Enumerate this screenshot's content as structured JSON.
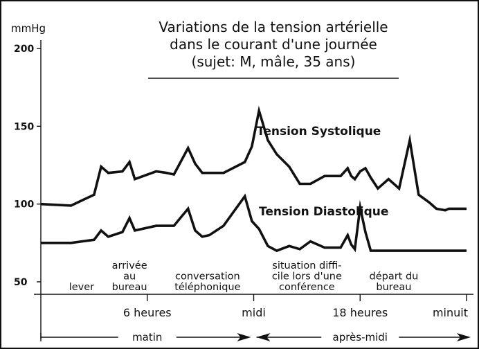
{
  "chart_data": {
    "type": "line",
    "title": "Variations de la tension artérielle\ndans le courant d'une journée\n(sujet: M, mâle, 35 ans)",
    "ylabel": "mmHg",
    "ylim": [
      50,
      200
    ],
    "yticks": [
      50,
      100,
      150,
      200
    ],
    "xlim": [
      0,
      24
    ],
    "xticks": [
      {
        "x": 6,
        "label": "6 heures"
      },
      {
        "x": 12,
        "label": "midi"
      },
      {
        "x": 18,
        "label": "18 heures"
      },
      {
        "x": 24,
        "label": "minuit"
      }
    ],
    "series": [
      {
        "name": "Tension Systolique",
        "x": [
          0,
          1.7,
          3.0,
          3.4,
          3.8,
          4.6,
          5.0,
          5.3,
          6.5,
          7.1,
          7.5,
          8.3,
          8.7,
          9.1,
          9.5,
          10.3,
          11.5,
          11.9,
          12.3,
          12.8,
          13.3,
          14.0,
          14.6,
          15.2,
          16.0,
          16.9,
          17.3,
          17.5,
          17.7,
          18.0,
          18.3,
          18.6,
          19.0,
          19.6,
          20.2,
          20.8,
          21.3,
          21.9,
          22.3,
          22.8,
          23.0,
          23.6,
          24.0
        ],
        "y": [
          100,
          99,
          106,
          124,
          120,
          121,
          127,
          116,
          121,
          120,
          119,
          136,
          126,
          120,
          120,
          120,
          127,
          137,
          160,
          141,
          132,
          124,
          113,
          113,
          118,
          118,
          123,
          118,
          116,
          121,
          123,
          117,
          110,
          116,
          110,
          141,
          106,
          101,
          97,
          96,
          97,
          97,
          97
        ]
      },
      {
        "name": "Tension Diastolique",
        "x": [
          0,
          1.7,
          3.0,
          3.4,
          3.8,
          4.6,
          5.0,
          5.3,
          6.5,
          7.1,
          7.5,
          8.3,
          8.7,
          9.1,
          9.5,
          10.3,
          11.5,
          11.9,
          12.3,
          12.8,
          13.3,
          14.0,
          14.6,
          15.2,
          16.0,
          16.9,
          17.3,
          17.5,
          17.7,
          18.0,
          18.3,
          18.6,
          19.0,
          19.6,
          20.2,
          20.8,
          21.3,
          21.9,
          22.3,
          22.8,
          23.0,
          23.6,
          24.0
        ],
        "y": [
          75,
          75,
          77,
          83,
          79,
          82,
          91,
          83,
          86,
          86,
          86,
          97,
          83,
          79,
          80,
          86,
          105,
          89,
          84,
          73,
          70,
          73,
          71,
          76,
          72,
          72,
          80,
          74,
          71,
          98,
          82,
          70,
          70,
          70,
          70,
          70,
          70,
          70,
          70,
          70,
          70,
          70,
          70
        ]
      }
    ],
    "annotations": [
      {
        "x": 2.3,
        "text": "lever"
      },
      {
        "x": 5.0,
        "text": "arrivée\nau\nbureau"
      },
      {
        "x": 9.4,
        "text": "conversation\ntéléphonique"
      },
      {
        "x": 15.0,
        "text": "situation diffi-\ncile lors d'une\nconférence"
      },
      {
        "x": 19.9,
        "text": "départ du\nbureau"
      }
    ],
    "periods": [
      {
        "x_start": 0,
        "x_end": 12,
        "label": "matin"
      },
      {
        "x_start": 12,
        "x_end": 24,
        "label": "après-midi"
      }
    ],
    "grid": false,
    "legend": "labels-on-curves"
  }
}
